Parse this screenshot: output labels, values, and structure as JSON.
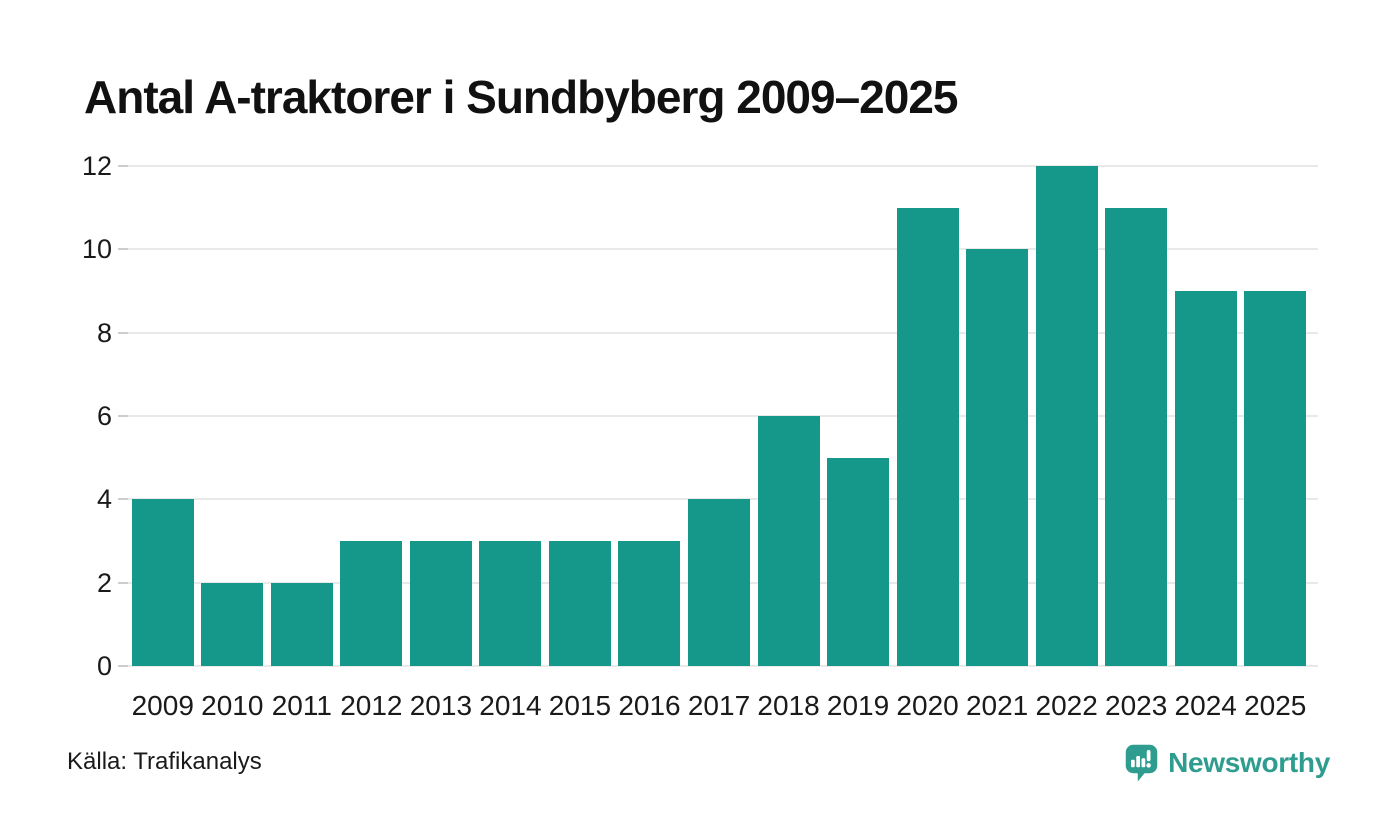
{
  "chart": {
    "title": "Antal A-traktorer i Sundbyberg 2009–2025"
  },
  "chart_data": {
    "type": "bar",
    "title": "Antal A-traktorer i Sundbyberg 2009–2025",
    "categories": [
      "2009",
      "2010",
      "2011",
      "2012",
      "2013",
      "2014",
      "2015",
      "2016",
      "2017",
      "2018",
      "2019",
      "2020",
      "2021",
      "2022",
      "2023",
      "2024",
      "2025"
    ],
    "values": [
      4,
      2,
      2,
      3,
      3,
      3,
      3,
      3,
      4,
      6,
      5,
      11,
      10,
      12,
      11,
      9,
      9
    ],
    "xlabel": "",
    "ylabel": "",
    "ylim": [
      0,
      12
    ],
    "yticks": [
      0,
      2,
      4,
      6,
      8,
      10,
      12
    ],
    "grid": true,
    "legend": "none",
    "bar_color": "#15978a",
    "gridline_color": "#e9e9e9"
  },
  "footer": {
    "source": "Källa: Trafikanalys",
    "brand": "Newsworthy",
    "brand_color": "#2e9c8e"
  }
}
